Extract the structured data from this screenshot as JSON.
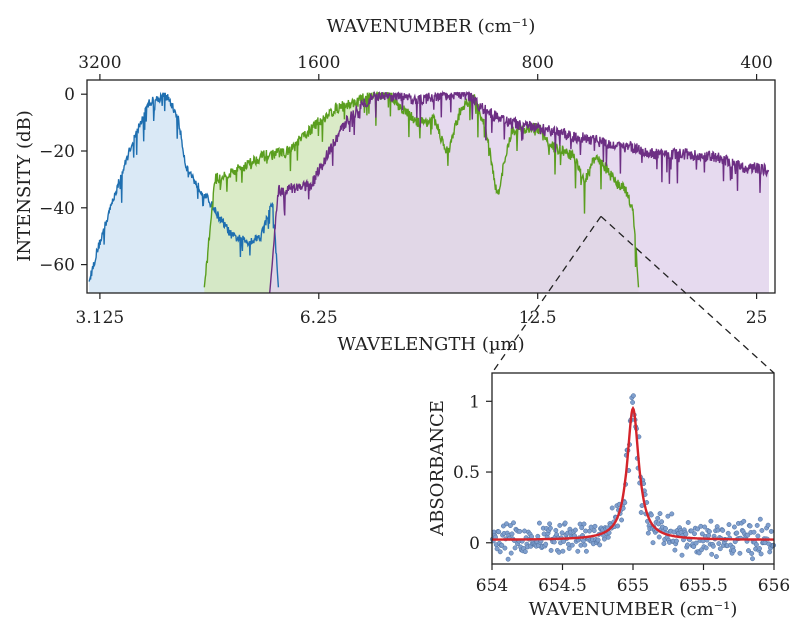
{
  "chart_data": [
    {
      "type": "area",
      "title": "",
      "top_axis_label": "WAVENUMBER (cm⁻¹)",
      "top_ticks": [
        "3200",
        "1600",
        "800",
        "400"
      ],
      "xlabel": "WAVELENGTH (µm)",
      "x_ticks": [
        "3.125",
        "6.25",
        "12.5",
        "25"
      ],
      "x_scale": "log2",
      "xlim_um": [
        3.0,
        26.5
      ],
      "ylabel": "INTENSITY (dB)",
      "y_ticks": [
        "0",
        "−20",
        "−40",
        "−60"
      ],
      "ylim": [
        -70,
        5
      ],
      "series": [
        {
          "name": "spectrum-1-blue",
          "color": "#1f6fb0",
          "fill": "#d3e5f5",
          "wavelength_um": [
            3.02,
            3.1,
            3.25,
            3.45,
            3.65,
            3.85,
            4.0,
            4.1,
            4.25,
            4.4,
            4.55,
            4.75,
            5.0,
            5.2,
            5.4,
            5.5
          ],
          "intensity_db": [
            -66,
            -55,
            -38,
            -18,
            -3,
            0,
            -8,
            -25,
            -32,
            -37,
            -43,
            -50,
            -52,
            -50,
            -38,
            -68
          ]
        },
        {
          "name": "spectrum-2-green",
          "color": "#5a9e1f",
          "fill": "#d3e8bd",
          "wavelength_um": [
            4.35,
            4.5,
            4.8,
            5.2,
            5.7,
            6.0,
            6.3,
            6.6,
            7.0,
            7.4,
            7.8,
            8.2,
            8.6,
            9.0,
            9.4,
            9.8,
            10.2,
            10.6,
            11.0,
            11.5,
            12.0,
            12.5,
            13.0,
            13.5,
            14.0,
            14.5,
            15.0,
            15.5,
            16.0,
            16.5,
            16.9,
            17.2
          ],
          "intensity_db": [
            -68,
            -30,
            -27,
            -22,
            -20,
            -14,
            -9,
            -5,
            -3,
            0,
            0,
            -6,
            -10,
            -9,
            -21,
            -5,
            -1,
            -12,
            -36,
            -13,
            -12,
            -12,
            -18,
            -20,
            -22,
            -31,
            -22,
            -26,
            -31,
            -34,
            -40,
            -68
          ]
        },
        {
          "name": "spectrum-3-purple",
          "color": "#6d2f84",
          "fill": "#e2d4ec",
          "wavelength_um": [
            5.35,
            5.5,
            5.8,
            6.1,
            6.4,
            6.8,
            7.2,
            7.6,
            8.0,
            8.5,
            9.0,
            9.5,
            10.0,
            10.5,
            11.0,
            11.5,
            12.0,
            13.0,
            14.0,
            15.0,
            16.0,
            17.0,
            18.0,
            19.0,
            20.0,
            21.0,
            22.0,
            23.0,
            24.0,
            25.0,
            26.0
          ],
          "intensity_db": [
            -70,
            -34,
            -33,
            -32,
            -22,
            -10,
            -3,
            0,
            -1,
            -2,
            -1,
            0,
            0,
            -5,
            -8,
            -10,
            -11,
            -13,
            -15,
            -16,
            -18,
            -19,
            -21,
            -21,
            -21,
            -22,
            -22,
            -24,
            -26,
            -26,
            -27
          ]
        }
      ],
      "zoom_marker_wavelength_um": 15.27
    },
    {
      "type": "scatter",
      "title": "",
      "xlabel": "WAVENUMBER (cm⁻¹)",
      "ylabel": "ABSORBANCE",
      "xlim": [
        654,
        656
      ],
      "ylim": [
        -0.15,
        1.2
      ],
      "x_ticks": [
        "654",
        "654.5",
        "655",
        "655.5",
        "656"
      ],
      "y_ticks": [
        "0",
        "0.5",
        "1"
      ],
      "points_color": "#7f9fce",
      "fit_color": "#d4242b",
      "fit": {
        "model": "lorentzian",
        "center": 655.0,
        "amplitude": 0.93,
        "half_width": 0.05,
        "baseline": 0.02
      },
      "noise_amplitude": 0.07,
      "point_count": 360
    }
  ]
}
